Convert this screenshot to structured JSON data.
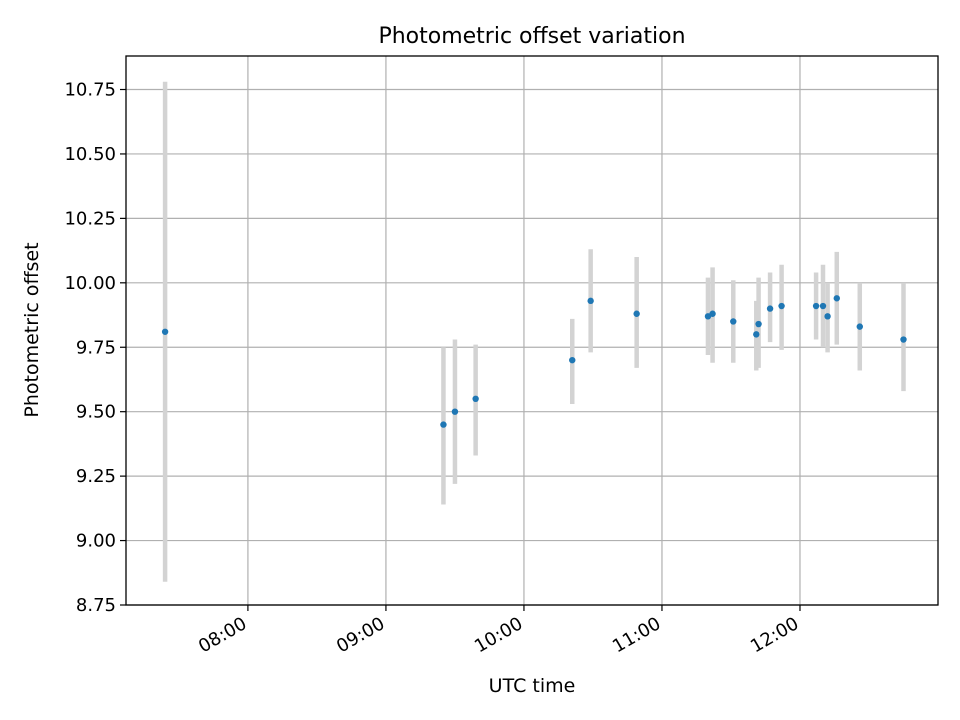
{
  "chart_data": {
    "type": "scatter",
    "title": "Photometric offset variation",
    "xlabel": "UTC time",
    "ylabel": "Photometric offset",
    "x_unit": "hours UTC",
    "xlim": [
      "07:07",
      "13:00"
    ],
    "ylim": [
      8.75,
      10.88
    ],
    "x_ticks": [
      "08:00",
      "09:00",
      "10:00",
      "11:00",
      "12:00"
    ],
    "y_ticks": [
      "8.75",
      "9.00",
      "9.25",
      "9.50",
      "9.75",
      "10.00",
      "10.25",
      "10.50",
      "10.75"
    ],
    "grid": true,
    "legend": "none",
    "colors": {
      "points": "#1f77b4",
      "errorbars": "#d3d3d3"
    },
    "points": [
      {
        "x": "07:24",
        "y": 9.81,
        "ylow": 8.84,
        "yhigh": 10.78
      },
      {
        "x": "09:25",
        "y": 9.45,
        "ylow": 9.14,
        "yhigh": 9.75
      },
      {
        "x": "09:30",
        "y": 9.5,
        "ylow": 9.22,
        "yhigh": 9.78
      },
      {
        "x": "09:39",
        "y": 9.55,
        "ylow": 9.33,
        "yhigh": 9.76
      },
      {
        "x": "10:21",
        "y": 9.7,
        "ylow": 9.53,
        "yhigh": 9.86
      },
      {
        "x": "10:29",
        "y": 9.93,
        "ylow": 9.73,
        "yhigh": 10.13
      },
      {
        "x": "10:49",
        "y": 9.88,
        "ylow": 9.67,
        "yhigh": 10.1
      },
      {
        "x": "11:20",
        "y": 9.87,
        "ylow": 9.72,
        "yhigh": 10.02
      },
      {
        "x": "11:22",
        "y": 9.88,
        "ylow": 9.69,
        "yhigh": 10.06
      },
      {
        "x": "11:31",
        "y": 9.85,
        "ylow": 9.69,
        "yhigh": 10.01
      },
      {
        "x": "11:41",
        "y": 9.8,
        "ylow": 9.66,
        "yhigh": 9.93
      },
      {
        "x": "11:42",
        "y": 9.84,
        "ylow": 9.67,
        "yhigh": 10.02
      },
      {
        "x": "11:47",
        "y": 9.9,
        "ylow": 9.77,
        "yhigh": 10.04
      },
      {
        "x": "11:52",
        "y": 9.91,
        "ylow": 9.74,
        "yhigh": 10.07
      },
      {
        "x": "12:07",
        "y": 9.91,
        "ylow": 9.78,
        "yhigh": 10.04
      },
      {
        "x": "12:10",
        "y": 9.91,
        "ylow": 9.75,
        "yhigh": 10.07
      },
      {
        "x": "12:12",
        "y": 9.87,
        "ylow": 9.73,
        "yhigh": 10.0
      },
      {
        "x": "12:16",
        "y": 9.94,
        "ylow": 9.76,
        "yhigh": 10.12
      },
      {
        "x": "12:26",
        "y": 9.83,
        "ylow": 9.66,
        "yhigh": 10.0
      },
      {
        "x": "12:45",
        "y": 9.78,
        "ylow": 9.58,
        "yhigh": 10.0
      }
    ]
  }
}
